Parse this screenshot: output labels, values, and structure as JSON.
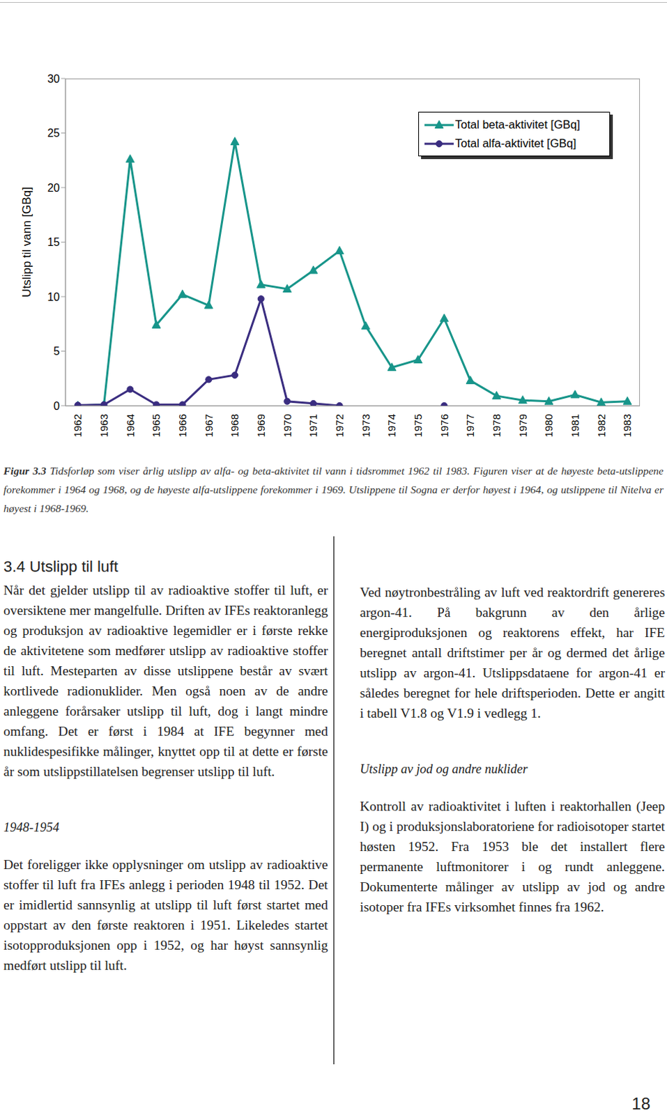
{
  "chart_data": {
    "type": "line",
    "ylabel": "Utslipp til vann [GBq]",
    "categories": [
      "1962",
      "1963",
      "1964",
      "1965",
      "1966",
      "1967",
      "1968",
      "1969",
      "1970",
      "1971",
      "1972",
      "1973",
      "1974",
      "1975",
      "1976",
      "1977",
      "1978",
      "1979",
      "1980",
      "1981",
      "1982",
      "1983"
    ],
    "series": [
      {
        "name": "Total beta-aktivitet [GBq]",
        "color": "#17958a",
        "marker": "triangle",
        "values": [
          0,
          0.1,
          22.6,
          7.4,
          10.2,
          9.2,
          24.2,
          11.1,
          10.7,
          12.4,
          14.2,
          7.3,
          3.5,
          4.2,
          8.0,
          2.3,
          0.9,
          0.5,
          0.4,
          1.0,
          0.3,
          0.4
        ]
      },
      {
        "name": "Total alfa-aktivitet [GBq]",
        "color": "#3a2d80",
        "marker": "circle",
        "values": [
          0.05,
          0.1,
          1.5,
          0.1,
          0.1,
          2.4,
          2.8,
          9.8,
          0.4,
          0.2,
          0,
          null,
          null,
          null,
          0,
          null,
          null,
          null,
          null,
          null,
          null,
          null
        ]
      }
    ],
    "ylim": [
      0,
      30
    ],
    "yticks": [
      0,
      5,
      10,
      15,
      20,
      25,
      30
    ],
    "grid": false,
    "legend": "upper right"
  },
  "caption": {
    "label": "Figur 3.3",
    "text": "Tidsforløp som viser årlig utslipp av alfa- og beta-aktivitet til vann i tidsrommet 1962 til 1983. Figuren viser at de høyeste beta-utslippene forekommer i 1964 og 1968, og de høyeste alfa-utslippene forekommer i 1969. Utslippene til Sogna er derfor høyest i 1964, og utslippene til Nitelva er høyest i 1968-1969."
  },
  "section": {
    "heading": "3.4 Utslipp til luft",
    "left_column": [
      {
        "type": "paragraph",
        "text": "Når det gjelder utslipp til av radioaktive stoffer til luft, er oversiktene mer mangelfulle. Driften av IFEs reaktoranlegg og produksjon av radioaktive legemidler er i første rekke de aktivitetene som medfører utslipp av radioaktive stoffer til luft. Mesteparten av disse utslippene består av svært kortlivede radionuklider. Men også noen av de andre anleggene forårsaker utslipp til luft, dog i langt mindre omfang. Det er først i 1984 at IFE begynner med nuklidespesifikke målinger, knyttet opp til at dette er første år som utslippstillatelsen begrenser utslipp til luft."
      },
      {
        "type": "subheading",
        "text": "1948-1954"
      },
      {
        "type": "paragraph",
        "text": "Det foreligger ikke opplysninger om utslipp av radioaktive stoffer til luft fra IFEs anlegg i perioden 1948 til 1952. Det er imidlertid sannsynlig at utslipp til luft først startet med oppstart av den første reaktoren i 1951. Likeledes startet isotopproduksjonen opp i 1952, og har høyst sannsynlig medført utslipp til luft."
      }
    ],
    "right_column": [
      {
        "type": "paragraph",
        "text": "Ved nøytronbestråling av luft ved reaktordrift genereres argon-41. På bakgrunn av den årlige energiproduksjonen og reaktorens effekt, har IFE beregnet antall driftstimer per år og dermed det årlige utslipp av argon-41. Utslippsdataene for argon-41 er således beregnet for hele driftsperioden. Dette er angitt i tabell V1.8 og V1.9 i vedlegg 1."
      },
      {
        "type": "subheading",
        "text": "Utslipp av jod og andre nuklider"
      },
      {
        "type": "paragraph",
        "text": "Kontroll av radioaktivitet i luften i reaktorhallen (Jeep I) og i produksjonslaboratoriene for radioisotoper startet høsten 1952. Fra 1953 ble det installert flere permanente luftmonitorer i og rundt anleggene. Dokumenterte målinger av utslipp av jod og andre isotoper fra IFEs virksomhet finnes fra 1962."
      }
    ]
  },
  "page_number": "18"
}
